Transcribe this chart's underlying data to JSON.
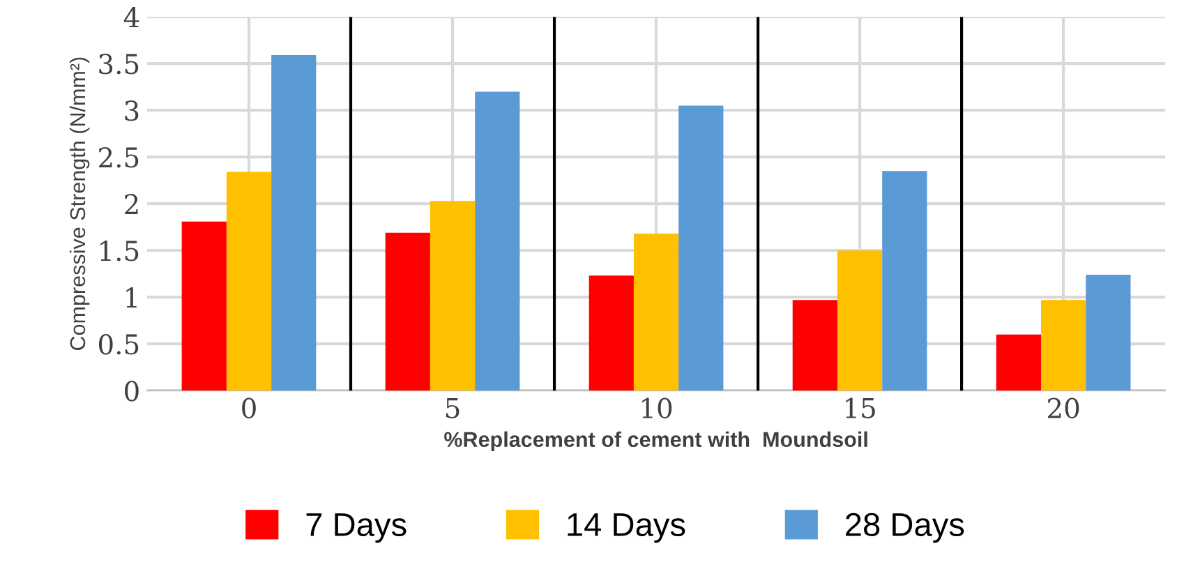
{
  "chart_data": {
    "type": "bar",
    "xlabel": "%Replacement of cement with  Moundsoil",
    "ylabel": "Compressive Strength (N/mm²)",
    "x": [
      0,
      5,
      10,
      15,
      20
    ],
    "xlim": [
      -2.5,
      22.5
    ],
    "xticks": [
      0,
      5,
      10,
      15,
      20
    ],
    "ylim": [
      0,
      4
    ],
    "yticks": [
      0,
      0.5,
      1,
      1.5,
      2,
      2.5,
      3,
      3.5,
      4
    ],
    "series": [
      {
        "name": "7 Days",
        "color": "#ff0000",
        "values": [
          1.81,
          1.69,
          1.23,
          0.97,
          0.6
        ]
      },
      {
        "name": "14 Days",
        "color": "#ffc000",
        "values": [
          2.34,
          2.03,
          1.68,
          1.5,
          0.97
        ]
      },
      {
        "name": "28 Days",
        "color": "#5b9bd5",
        "values": [
          3.59,
          3.2,
          3.05,
          2.35,
          1.24
        ]
      }
    ],
    "ref_lines": [
      {
        "axis": "x",
        "value": 2.5,
        "color": "#000000"
      },
      {
        "axis": "x",
        "value": 7.5,
        "color": "#000000"
      },
      {
        "axis": "x",
        "value": 12.5,
        "color": "#000000"
      },
      {
        "axis": "x",
        "value": 17.5,
        "color": "#000000"
      }
    ],
    "grid": true,
    "legend": "bottom"
  }
}
